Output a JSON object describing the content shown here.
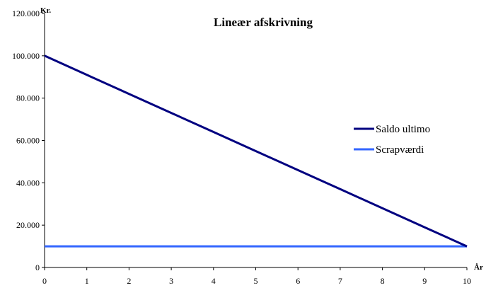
{
  "chart_data": {
    "type": "line",
    "title": "Lineær afskrivning",
    "xlabel": "År",
    "ylabel": "Kr.",
    "x": [
      0,
      1,
      2,
      3,
      4,
      5,
      6,
      7,
      8,
      9,
      10
    ],
    "x_tick_labels": [
      "0",
      "1",
      "2",
      "3",
      "4",
      "5",
      "6",
      "7",
      "8",
      "9",
      "10"
    ],
    "xlim": [
      0,
      10
    ],
    "ylim": [
      0,
      120000
    ],
    "y_ticks": [
      0,
      20000,
      40000,
      60000,
      80000,
      100000,
      120000
    ],
    "y_tick_labels": [
      "0",
      "20.000",
      "40.000",
      "60.000",
      "80.000",
      "100.000",
      "120.000"
    ],
    "grid": false,
    "legend_position": "right",
    "series": [
      {
        "name": "Saldo ultimo",
        "color": "#000080",
        "values": [
          100000,
          91000,
          82000,
          73000,
          64000,
          55000,
          46000,
          37000,
          28000,
          19000,
          10000
        ]
      },
      {
        "name": "Scrapværdi",
        "color": "#3366ff",
        "values": [
          10000,
          10000,
          10000,
          10000,
          10000,
          10000,
          10000,
          10000,
          10000,
          10000,
          10000
        ]
      }
    ]
  }
}
